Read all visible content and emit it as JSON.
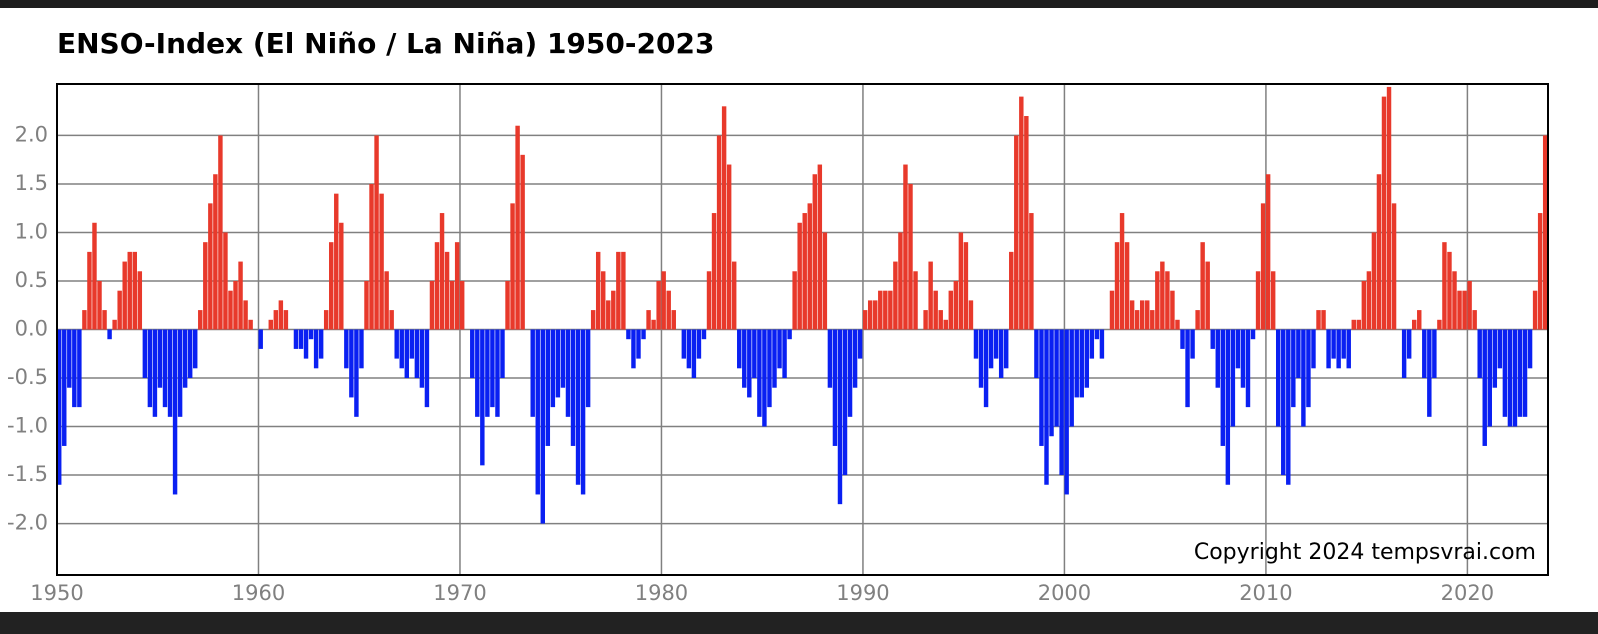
{
  "chart_data": {
    "type": "bar",
    "title": "ENSO-Index (El Niño / La Niña) 1950-2023",
    "annotation": "Copyright 2024 tempsvrai.com",
    "pos_color": "#e8392b",
    "neg_color": "#0a20f2",
    "grid": true,
    "xlim": [
      1950,
      2024
    ],
    "ylim": [
      -2.53,
      2.53
    ],
    "xticks": [
      1950,
      1960,
      1970,
      1980,
      1990,
      2000,
      2010,
      2020
    ],
    "yticks": [
      {
        "value": 2.0,
        "label": "2.0"
      },
      1.5,
      {
        "value": 1.0,
        "label": "1.0"
      },
      0.5,
      {
        "value": 0.0,
        "label": "0.0"
      },
      -0.5,
      {
        "value": -1.0,
        "label": "-1.0"
      },
      -1.5,
      {
        "value": -2.0,
        "label": "-2.0"
      }
    ],
    "x": [
      1950,
      1950.25,
      1950.5,
      1950.75,
      1951,
      1951.25,
      1951.5,
      1951.75,
      1952,
      1952.25,
      1952.5,
      1952.75,
      1953,
      1953.25,
      1953.5,
      1953.75,
      1954,
      1954.25,
      1954.5,
      1954.75,
      1955,
      1955.25,
      1955.5,
      1955.75,
      1956,
      1956.25,
      1956.5,
      1956.75,
      1957,
      1957.25,
      1957.5,
      1957.75,
      1958,
      1958.25,
      1958.5,
      1958.75,
      1959,
      1959.25,
      1959.5,
      1959.75,
      1960,
      1960.25,
      1960.5,
      1960.75,
      1961,
      1961.25,
      1961.5,
      1961.75,
      1962,
      1962.25,
      1962.5,
      1962.75,
      1963,
      1963.25,
      1963.5,
      1963.75,
      1964,
      1964.25,
      1964.5,
      1964.75,
      1965,
      1965.25,
      1965.5,
      1965.75,
      1966,
      1966.25,
      1966.5,
      1966.75,
      1967,
      1967.25,
      1967.5,
      1967.75,
      1968,
      1968.25,
      1968.5,
      1968.75,
      1969,
      1969.25,
      1969.5,
      1969.75,
      1970,
      1970.25,
      1970.5,
      1970.75,
      1971,
      1971.25,
      1971.5,
      1971.75,
      1972,
      1972.25,
      1972.5,
      1972.75,
      1973,
      1973.25,
      1973.5,
      1973.75,
      1974,
      1974.25,
      1974.5,
      1974.75,
      1975,
      1975.25,
      1975.5,
      1975.75,
      1976,
      1976.25,
      1976.5,
      1976.75,
      1977,
      1977.25,
      1977.5,
      1977.75,
      1978,
      1978.25,
      1978.5,
      1978.75,
      1979,
      1979.25,
      1979.5,
      1979.75,
      1980,
      1980.25,
      1980.5,
      1980.75,
      1981,
      1981.25,
      1981.5,
      1981.75,
      1982,
      1982.25,
      1982.5,
      1982.75,
      1983,
      1983.25,
      1983.5,
      1983.75,
      1984,
      1984.25,
      1984.5,
      1984.75,
      1985,
      1985.25,
      1985.5,
      1985.75,
      1986,
      1986.25,
      1986.5,
      1986.75,
      1987,
      1987.25,
      1987.5,
      1987.75,
      1988,
      1988.25,
      1988.5,
      1988.75,
      1989,
      1989.25,
      1989.5,
      1989.75,
      1990,
      1990.25,
      1990.5,
      1990.75,
      1991,
      1991.25,
      1991.5,
      1991.75,
      1992,
      1992.25,
      1992.5,
      1992.75,
      1993,
      1993.25,
      1993.5,
      1993.75,
      1994,
      1994.25,
      1994.5,
      1994.75,
      1995,
      1995.25,
      1995.5,
      1995.75,
      1996,
      1996.25,
      1996.5,
      1996.75,
      1997,
      1997.25,
      1997.5,
      1997.75,
      1998,
      1998.25,
      1998.5,
      1998.75,
      1999,
      1999.25,
      1999.5,
      1999.75,
      2000,
      2000.25,
      2000.5,
      2000.75,
      2001,
      2001.25,
      2001.5,
      2001.75,
      2002,
      2002.25,
      2002.5,
      2002.75,
      2003,
      2003.25,
      2003.5,
      2003.75,
      2004,
      2004.25,
      2004.5,
      2004.75,
      2005,
      2005.25,
      2005.5,
      2005.75,
      2006,
      2006.25,
      2006.5,
      2006.75,
      2007,
      2007.25,
      2007.5,
      2007.75,
      2008,
      2008.25,
      2008.5,
      2008.75,
      2009,
      2009.25,
      2009.5,
      2009.75,
      2010,
      2010.25,
      2010.5,
      2010.75,
      2011,
      2011.25,
      2011.5,
      2011.75,
      2012,
      2012.25,
      2012.5,
      2012.75,
      2013,
      2013.25,
      2013.5,
      2013.75,
      2014,
      2014.25,
      2014.5,
      2014.75,
      2015,
      2015.25,
      2015.5,
      2015.75,
      2016,
      2016.25,
      2016.5,
      2016.75,
      2017,
      2017.25,
      2017.5,
      2017.75,
      2018,
      2018.25,
      2018.5,
      2018.75,
      2019,
      2019.25,
      2019.5,
      2019.75,
      2020,
      2020.25,
      2020.5,
      2020.75,
      2021,
      2021.25,
      2021.5,
      2021.75,
      2022,
      2022.25,
      2022.5,
      2022.75,
      2023,
      2023.25,
      2023.5,
      2023.75
    ],
    "values": [
      -1.6,
      -1.2,
      -0.6,
      -0.8,
      -0.8,
      0.2,
      0.8,
      1.1,
      0.5,
      0.2,
      -0.1,
      0.1,
      0.4,
      0.7,
      0.8,
      0.8,
      0.6,
      -0.5,
      -0.8,
      -0.9,
      -0.6,
      -0.8,
      -0.9,
      -1.7,
      -0.9,
      -0.6,
      -0.5,
      -0.4,
      0.2,
      0.9,
      1.3,
      1.6,
      2.0,
      1.0,
      0.4,
      0.5,
      0.7,
      0.3,
      0.1,
      0.0,
      -0.2,
      0.0,
      0.1,
      0.2,
      0.3,
      0.2,
      0.0,
      -0.2,
      -0.2,
      -0.3,
      -0.1,
      -0.4,
      -0.3,
      0.2,
      0.9,
      1.4,
      1.1,
      -0.4,
      -0.7,
      -0.9,
      -0.4,
      0.5,
      1.5,
      2.0,
      1.4,
      0.6,
      0.2,
      -0.3,
      -0.4,
      -0.5,
      -0.3,
      -0.5,
      -0.6,
      -0.8,
      0.5,
      0.9,
      1.2,
      0.8,
      0.5,
      0.9,
      0.5,
      0.0,
      -0.5,
      -0.9,
      -1.4,
      -0.9,
      -0.8,
      -0.9,
      -0.5,
      0.5,
      1.3,
      2.1,
      1.8,
      0.0,
      -0.9,
      -1.7,
      -2.0,
      -1.2,
      -0.8,
      -0.7,
      -0.6,
      -0.9,
      -1.2,
      -1.6,
      -1.7,
      -0.8,
      0.2,
      0.8,
      0.6,
      0.3,
      0.4,
      0.8,
      0.8,
      -0.1,
      -0.4,
      -0.3,
      -0.1,
      0.2,
      0.1,
      0.5,
      0.6,
      0.4,
      0.2,
      0.0,
      -0.3,
      -0.4,
      -0.5,
      -0.3,
      -0.1,
      0.6,
      1.2,
      2.0,
      2.3,
      1.7,
      0.7,
      -0.4,
      -0.6,
      -0.7,
      -0.5,
      -0.9,
      -1.0,
      -0.8,
      -0.6,
      -0.4,
      -0.5,
      -0.1,
      0.6,
      1.1,
      1.2,
      1.3,
      1.6,
      1.7,
      1.0,
      -0.6,
      -1.2,
      -1.8,
      -1.5,
      -0.9,
      -0.6,
      -0.3,
      0.2,
      0.3,
      0.3,
      0.4,
      0.4,
      0.4,
      0.7,
      1.0,
      1.7,
      1.5,
      0.6,
      0.0,
      0.2,
      0.7,
      0.4,
      0.2,
      0.1,
      0.4,
      0.5,
      1.0,
      0.9,
      0.3,
      -0.3,
      -0.6,
      -0.8,
      -0.4,
      -0.3,
      -0.5,
      -0.4,
      0.8,
      2.0,
      2.4,
      2.2,
      1.2,
      -0.5,
      -1.2,
      -1.6,
      -1.1,
      -1.0,
      -1.5,
      -1.7,
      -1.0,
      -0.7,
      -0.7,
      -0.6,
      -0.3,
      -0.1,
      -0.3,
      0.0,
      0.4,
      0.9,
      1.2,
      0.9,
      0.3,
      0.2,
      0.3,
      0.3,
      0.2,
      0.6,
      0.7,
      0.6,
      0.4,
      0.1,
      -0.2,
      -0.8,
      -0.3,
      0.2,
      0.9,
      0.7,
      -0.2,
      -0.6,
      -1.2,
      -1.6,
      -1.0,
      -0.4,
      -0.6,
      -0.8,
      -0.1,
      0.6,
      1.3,
      1.6,
      0.6,
      -1.0,
      -1.5,
      -1.6,
      -0.8,
      -0.5,
      -1.0,
      -0.8,
      -0.4,
      0.2,
      0.2,
      -0.4,
      -0.3,
      -0.4,
      -0.3,
      -0.4,
      0.1,
      0.1,
      0.5,
      0.6,
      1.0,
      1.6,
      2.4,
      2.5,
      1.3,
      0.0,
      -0.5,
      -0.3,
      0.1,
      0.2,
      -0.5,
      -0.9,
      -0.5,
      0.1,
      0.9,
      0.8,
      0.6,
      0.4,
      0.4,
      0.5,
      0.2,
      -0.5,
      -1.2,
      -1.0,
      -0.6,
      -0.4,
      -0.9,
      -1.0,
      -1.0,
      -0.9,
      -0.9,
      -0.4,
      0.4,
      1.2,
      2.0
    ]
  }
}
